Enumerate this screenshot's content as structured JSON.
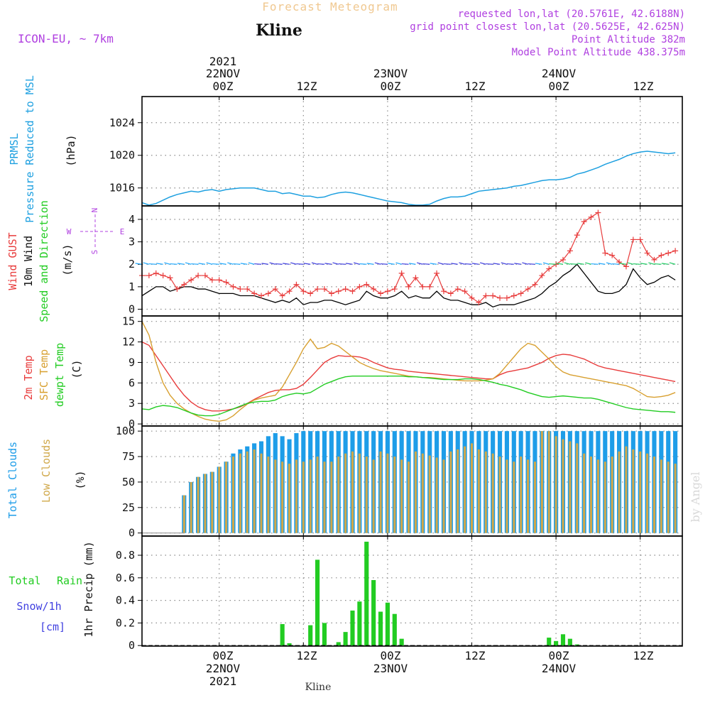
{
  "header": {
    "forecast_title": "Forecast Meteogram",
    "location": "Kline",
    "model": "ICON-EU, ~ 7km",
    "requested": "requested lon,lat (20.5761E, 42.6188N)",
    "grid_point": "grid point closest lon,lat (20.5625E, 42.625N)",
    "point_altitude": "Point Altitude 382m",
    "model_altitude": "Model Point Altitude 438.375m",
    "footer_location": "Kline",
    "watermark": "by Angel"
  },
  "time_axis": {
    "year": "2021",
    "day_labels": [
      "22NOV",
      "23NOV",
      "24NOV"
    ],
    "tick_labels": [
      "00Z",
      "12Z",
      "00Z",
      "12Z",
      "00Z",
      "12Z"
    ],
    "start_hour": -11,
    "end_hour": 66,
    "hours_per_step": 1
  },
  "colors": {
    "pressure": "#1ea0e0",
    "gust": "#e83c3c",
    "wind": "#000000",
    "temp2m": "#e83c3c",
    "sfc": "#d8a030",
    "dewpt": "#22cc22",
    "total_clouds": "#1e9de8",
    "low_clouds": "#d0a84a",
    "rain": "#22cc22",
    "purple": "#b040e0",
    "grid": "#8a8a8a"
  },
  "chart_data": [
    {
      "type": "line",
      "panel": "pressure",
      "ylabel_lines": [
        "PRMSL",
        "Pressure Reduced to MSL",
        "(hPa)"
      ],
      "y_ticks": [
        1016,
        1020,
        1024
      ],
      "ylim": [
        1013.8,
        1027.2
      ],
      "start_hour": -11,
      "step_hours": 1,
      "series": [
        {
          "values": [
            1014.2,
            1013.9,
            1014.1,
            1014.5,
            1014.9,
            1015.2,
            1015.4,
            1015.6,
            1015.5,
            1015.7,
            1015.8,
            1015.6,
            1015.8,
            1015.9,
            1016.0,
            1016.0,
            1016.0,
            1015.8,
            1015.6,
            1015.6,
            1015.3,
            1015.4,
            1015.2,
            1015.0,
            1015.0,
            1014.8,
            1014.9,
            1015.2,
            1015.4,
            1015.5,
            1015.4,
            1015.2,
            1015.0,
            1014.8,
            1014.6,
            1014.4,
            1014.3,
            1014.2,
            1014.0,
            1013.9,
            1013.9,
            1014.0,
            1014.4,
            1014.7,
            1014.9,
            1014.9,
            1015.0,
            1015.3,
            1015.6,
            1015.7,
            1015.8,
            1015.9,
            1016.0,
            1016.2,
            1016.3,
            1016.5,
            1016.7,
            1016.9,
            1017.0,
            1017.0,
            1017.1,
            1017.3,
            1017.7,
            1017.9,
            1018.2,
            1018.5,
            1018.9,
            1019.2,
            1019.5,
            1019.9,
            1020.2,
            1020.4,
            1020.5,
            1020.4,
            1020.3,
            1020.2,
            1020.3
          ]
        }
      ]
    },
    {
      "type": "line",
      "panel": "wind",
      "ylabel_lines": [
        "Wind GUST",
        "10m Wind",
        "Speed and Direction",
        "(m/s)"
      ],
      "compass": {
        "n": "N",
        "s": "S",
        "w": "W",
        "e": "E"
      },
      "y_ticks": [
        0,
        1,
        2,
        3,
        4
      ],
      "ylim": [
        -0.3,
        4.6
      ],
      "start_hour": -11,
      "step_hours": 1,
      "series": [
        {
          "name": "Wind GUST",
          "values": [
            1.5,
            1.5,
            1.6,
            1.5,
            1.4,
            0.9,
            1.1,
            1.3,
            1.5,
            1.5,
            1.3,
            1.3,
            1.2,
            1.0,
            0.9,
            0.9,
            0.7,
            0.6,
            0.7,
            0.9,
            0.6,
            0.8,
            1.1,
            0.8,
            0.7,
            0.9,
            0.9,
            0.7,
            0.8,
            0.9,
            0.8,
            1.0,
            1.1,
            0.9,
            0.7,
            0.8,
            0.9,
            1.6,
            1.0,
            1.4,
            1.0,
            1.0,
            1.6,
            0.8,
            0.7,
            0.9,
            0.8,
            0.5,
            0.3,
            0.6,
            0.6,
            0.5,
            0.5,
            0.6,
            0.7,
            0.9,
            1.1,
            1.5,
            1.8,
            2.0,
            2.2,
            2.6,
            3.3,
            3.9,
            4.1,
            4.3,
            2.5,
            2.4,
            2.1,
            1.9,
            3.1,
            3.1,
            2.5,
            2.2,
            2.4,
            2.5,
            2.6
          ]
        },
        {
          "name": "10m Wind",
          "values": [
            0.6,
            0.8,
            1.0,
            1.0,
            0.8,
            0.9,
            1.0,
            1.0,
            0.9,
            0.9,
            0.8,
            0.7,
            0.7,
            0.7,
            0.6,
            0.6,
            0.6,
            0.5,
            0.4,
            0.3,
            0.4,
            0.3,
            0.5,
            0.2,
            0.3,
            0.3,
            0.4,
            0.4,
            0.3,
            0.2,
            0.3,
            0.4,
            0.8,
            0.6,
            0.5,
            0.5,
            0.6,
            0.8,
            0.5,
            0.6,
            0.5,
            0.5,
            0.8,
            0.5,
            0.4,
            0.4,
            0.3,
            0.2,
            0.2,
            0.3,
            0.1,
            0.2,
            0.2,
            0.2,
            0.3,
            0.4,
            0.5,
            0.7,
            1.0,
            1.2,
            1.5,
            1.7,
            2.0,
            1.6,
            1.2,
            0.8,
            0.7,
            0.7,
            0.8,
            1.1,
            1.8,
            1.4,
            1.1,
            1.2,
            1.4,
            1.5,
            1.3
          ]
        }
      ]
    },
    {
      "type": "line",
      "panel": "temperature",
      "ylabel_lines": [
        "2m Temp",
        "SFC Temp",
        "dewpt Temp",
        "(C)"
      ],
      "y_ticks": [
        0,
        3,
        6,
        9,
        12,
        15
      ],
      "ylim": [
        -0.3,
        15.8
      ],
      "start_hour": -11,
      "step_hours": 1,
      "series": [
        {
          "name": "2m Temp",
          "values": [
            12.0,
            11.5,
            10.0,
            8.5,
            7.0,
            5.5,
            4.2,
            3.2,
            2.5,
            2.1,
            1.9,
            1.9,
            2.0,
            2.2,
            2.5,
            3.0,
            3.6,
            4.1,
            4.6,
            4.9,
            5.0,
            5.0,
            5.2,
            5.8,
            6.8,
            7.9,
            9.0,
            9.6,
            10.0,
            9.9,
            9.9,
            9.8,
            9.5,
            9.0,
            8.6,
            8.2,
            8.0,
            7.9,
            7.7,
            7.6,
            7.5,
            7.4,
            7.3,
            7.2,
            7.1,
            7.0,
            6.9,
            6.8,
            6.7,
            6.6,
            6.6,
            7.2,
            7.6,
            7.8,
            8.0,
            8.2,
            8.6,
            9.0,
            9.6,
            10.0,
            10.2,
            10.1,
            9.8,
            9.5,
            9.0,
            8.5,
            8.2,
            8.0,
            7.8,
            7.6,
            7.4,
            7.2,
            7.0,
            6.8,
            6.6,
            6.4,
            6.2
          ]
        },
        {
          "name": "SFC Temp",
          "values": [
            15.0,
            13.0,
            9.0,
            6.0,
            4.2,
            3.0,
            2.2,
            1.6,
            1.1,
            0.7,
            0.5,
            0.4,
            0.6,
            1.2,
            2.1,
            2.9,
            3.5,
            3.8,
            4.0,
            4.2,
            5.4,
            7.2,
            9.0,
            11.0,
            12.4,
            11.0,
            11.2,
            11.8,
            11.4,
            10.6,
            9.8,
            9.0,
            8.5,
            8.1,
            7.8,
            7.6,
            7.4,
            7.2,
            7.0,
            6.9,
            6.8,
            6.8,
            6.7,
            6.6,
            6.5,
            6.4,
            6.3,
            6.3,
            6.3,
            6.4,
            6.6,
            7.4,
            8.6,
            9.8,
            11.0,
            11.8,
            11.5,
            10.5,
            9.5,
            8.4,
            7.6,
            7.2,
            7.0,
            6.8,
            6.6,
            6.4,
            6.2,
            6.0,
            5.8,
            5.6,
            5.2,
            4.6,
            4.0,
            3.9,
            4.0,
            4.2,
            4.6
          ]
        },
        {
          "name": "dewpt Temp",
          "values": [
            2.2,
            2.1,
            2.5,
            2.7,
            2.6,
            2.4,
            2.0,
            1.6,
            1.3,
            1.2,
            1.2,
            1.4,
            1.8,
            2.2,
            2.6,
            3.0,
            3.2,
            3.3,
            3.3,
            3.5,
            4.0,
            4.3,
            4.5,
            4.4,
            4.6,
            5.2,
            5.8,
            6.2,
            6.6,
            6.9,
            7.0,
            7.0,
            7.0,
            7.0,
            7.0,
            7.0,
            7.0,
            7.0,
            6.9,
            6.9,
            6.8,
            6.7,
            6.6,
            6.5,
            6.5,
            6.5,
            6.6,
            6.6,
            6.5,
            6.3,
            6.1,
            5.8,
            5.6,
            5.3,
            5.0,
            4.6,
            4.3,
            4.0,
            3.9,
            4.0,
            4.1,
            4.0,
            3.9,
            3.8,
            3.8,
            3.6,
            3.3,
            3.0,
            2.7,
            2.4,
            2.2,
            2.1,
            2.0,
            1.9,
            1.8,
            1.8,
            1.7
          ]
        }
      ]
    },
    {
      "type": "bar",
      "panel": "clouds",
      "ylabel_lines": [
        "Total Clouds",
        "Low Clouds",
        "(%)"
      ],
      "y_ticks": [
        0,
        25,
        50,
        75,
        100
      ],
      "ylim": [
        -3,
        105
      ],
      "start_hour": -11,
      "step_hours": 1,
      "series": [
        {
          "name": "Total Clouds",
          "values": [
            0,
            0,
            0,
            0,
            0,
            0,
            37,
            50,
            55,
            58,
            60,
            65,
            70,
            78,
            82,
            85,
            88,
            90,
            95,
            98,
            95,
            92,
            98,
            100,
            100,
            100,
            100,
            100,
            100,
            100,
            100,
            100,
            100,
            100,
            100,
            100,
            100,
            100,
            100,
            100,
            100,
            100,
            100,
            100,
            100,
            100,
            100,
            100,
            100,
            100,
            100,
            100,
            100,
            100,
            100,
            100,
            100,
            100,
            100,
            100,
            100,
            100,
            100,
            100,
            100,
            100,
            100,
            100,
            100,
            100,
            100,
            100,
            100,
            100,
            100,
            100,
            100
          ]
        },
        {
          "name": "Low Clouds",
          "values": [
            0,
            0,
            0,
            0,
            0,
            0,
            37,
            50,
            55,
            58,
            60,
            65,
            70,
            75,
            78,
            80,
            82,
            78,
            75,
            72,
            70,
            68,
            72,
            70,
            72,
            75,
            70,
            70,
            75,
            78,
            80,
            78,
            75,
            72,
            80,
            78,
            75,
            72,
            70,
            80,
            78,
            76,
            74,
            72,
            80,
            82,
            85,
            88,
            82,
            80,
            78,
            75,
            72,
            70,
            75,
            72,
            70,
            100,
            100,
            95,
            92,
            90,
            88,
            78,
            75,
            72,
            70,
            75,
            80,
            85,
            82,
            80,
            78,
            75,
            72,
            70,
            68
          ]
        }
      ]
    },
    {
      "type": "bar",
      "panel": "precip",
      "ylabel_lines": [
        "Total",
        "Rain",
        "Snow/1h",
        "[cm]",
        "1hr Precip (mm)"
      ],
      "y_ticks": [
        0,
        0.2,
        0.4,
        0.6,
        0.8
      ],
      "ylim": [
        -0.005,
        0.97
      ],
      "start_hour": -11,
      "step_hours": 1,
      "series": [
        {
          "name": "Total Rain",
          "values": [
            0,
            0,
            0,
            0,
            0,
            0,
            0,
            0,
            0,
            0,
            0,
            0,
            0,
            0,
            0,
            0,
            0,
            0,
            0,
            0,
            0.19,
            0.02,
            0,
            0,
            0.18,
            0.76,
            0.2,
            0,
            0.03,
            0.12,
            0.31,
            0.39,
            0.92,
            0.58,
            0.3,
            0.38,
            0.28,
            0.06,
            0,
            0,
            0,
            0,
            0,
            0,
            0,
            0,
            0,
            0,
            0,
            0,
            0,
            0,
            0,
            0,
            0,
            0,
            0,
            0,
            0.07,
            0.04,
            0.1,
            0.06,
            0.01,
            0,
            0,
            0,
            0,
            0,
            0,
            0,
            0,
            0,
            0,
            0,
            0,
            0,
            0
          ]
        }
      ]
    }
  ]
}
